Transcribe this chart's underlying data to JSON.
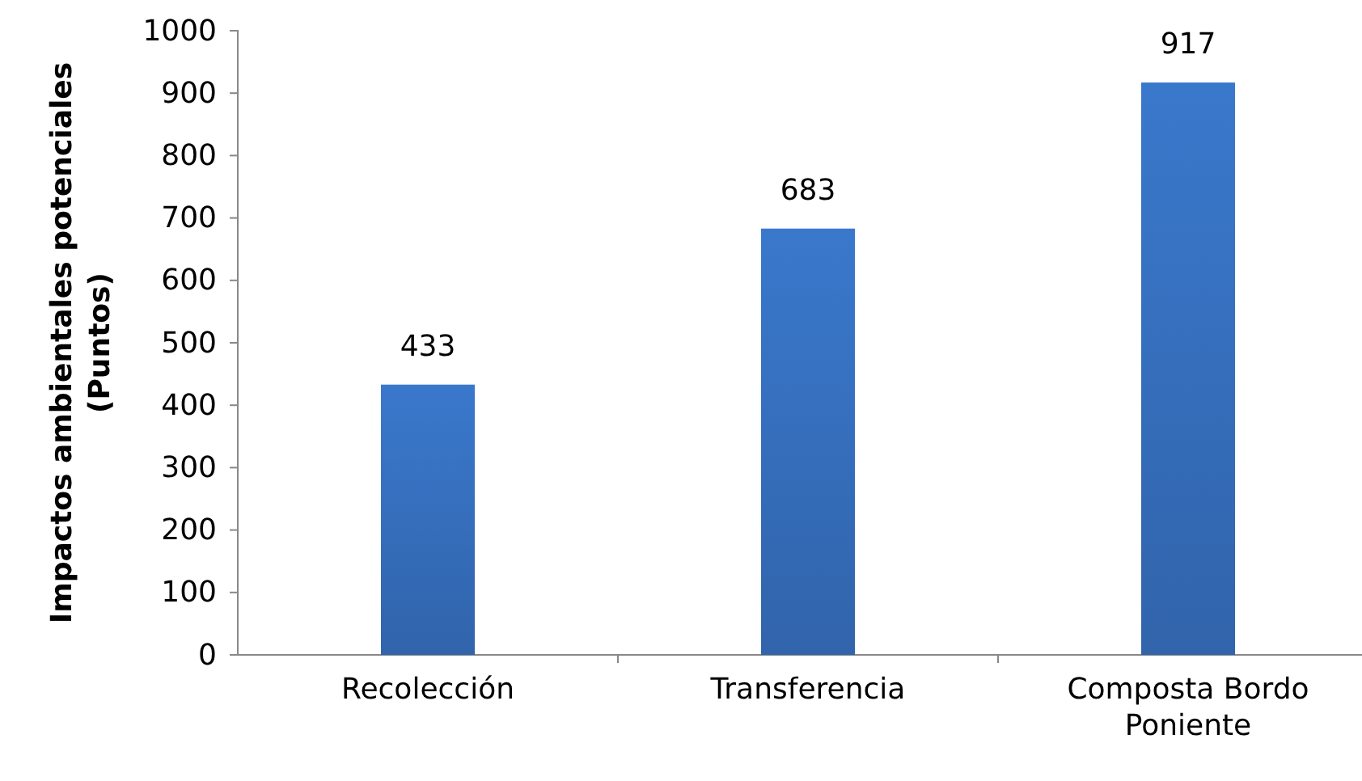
{
  "chart_data": {
    "type": "bar",
    "ylabel": "Impactos ambientales potenciales\n(Puntos)",
    "categories": [
      "Recolección",
      "Transferencia",
      "Composta Bordo Poniente"
    ],
    "values": [
      433,
      683,
      917
    ],
    "color": "#3a78cc",
    "ylim": [
      0,
      1000
    ],
    "yticks": [
      0,
      100,
      200,
      300,
      400,
      500,
      600,
      700,
      800,
      900,
      1000
    ],
    "data_labels": true,
    "grid": false
  }
}
